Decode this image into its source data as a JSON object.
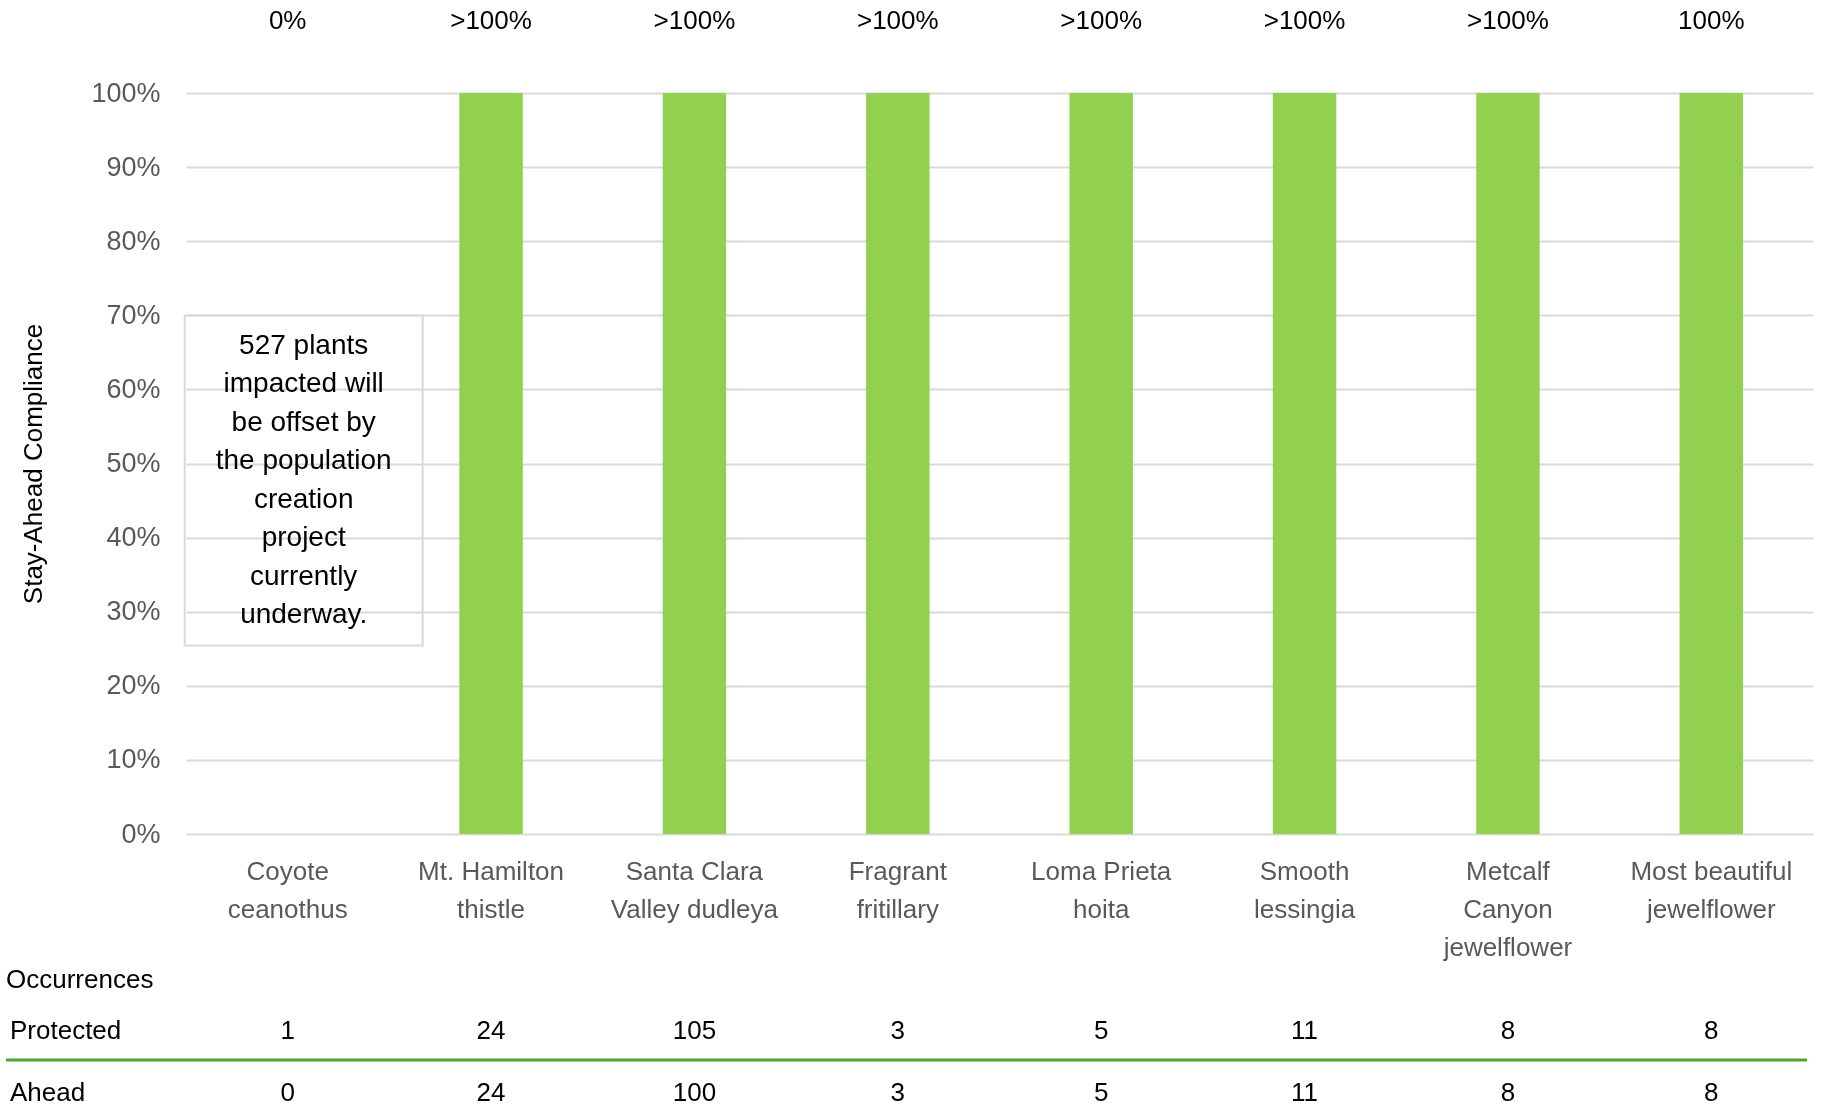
{
  "chart_data": {
    "type": "bar",
    "ylabel": "Stay-Ahead Compliance",
    "categories": [
      "Coyote ceanothus",
      "Mt. Hamilton thistle",
      "Santa Clara Valley dudleya",
      "Fragrant fritillary",
      "Loma Prieta hoita",
      "Smooth lessingia",
      "Metcalf Canyon jewelflower",
      "Most beautiful jewelflower"
    ],
    "values": [
      0,
      100,
      100,
      100,
      100,
      100,
      100,
      100
    ],
    "color": "#92d050",
    "value_labels": [
      "0%",
      ">100%",
      ">100%",
      ">100%",
      ">100%",
      ">100%",
      ">100%",
      "100%"
    ],
    "ylim": [
      0,
      100
    ],
    "yticks": [
      {
        "value": 0,
        "label": "0%"
      },
      {
        "value": 10,
        "label": "10%"
      },
      {
        "value": 20,
        "label": "20%"
      },
      {
        "value": 30,
        "label": "30%"
      },
      {
        "value": 40,
        "label": "40%"
      },
      {
        "value": 50,
        "label": "50%"
      },
      {
        "value": 60,
        "label": "60%"
      },
      {
        "value": 70,
        "label": "70%"
      },
      {
        "value": 80,
        "label": "80%"
      },
      {
        "value": 90,
        "label": "90%"
      },
      {
        "value": 100,
        "label": "100%"
      }
    ],
    "grid": "y",
    "annotations": [
      "527 plants impacted will be offset by the population creation project currently underway.",
      "Occurrences",
      "Protected",
      "1",
      "24",
      "105",
      "3",
      "5",
      "11",
      "8",
      "8",
      "Ahead",
      "0",
      "24",
      "100",
      "3",
      "5",
      "11",
      "8",
      "8"
    ]
  }
}
